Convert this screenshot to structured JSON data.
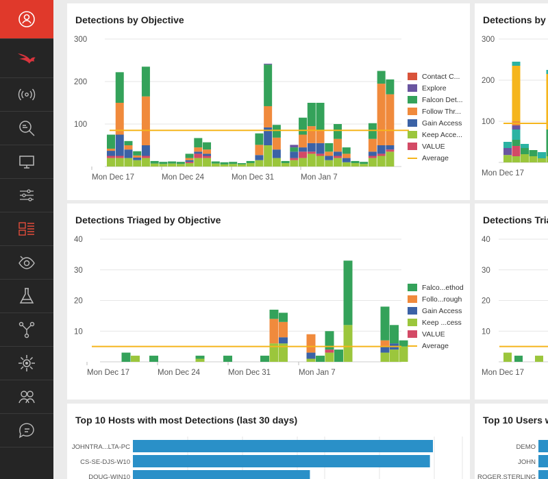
{
  "sidebar": {
    "items": [
      {
        "name": "user-icon",
        "active": true
      },
      {
        "name": "falcon-logo-icon"
      },
      {
        "name": "broadcast-icon"
      },
      {
        "name": "search-investigate-icon"
      },
      {
        "name": "monitor-icon"
      },
      {
        "name": "sliders-icon"
      },
      {
        "name": "dashboard-icon",
        "highlighted": true
      },
      {
        "name": "eye-icon"
      },
      {
        "name": "flask-icon"
      },
      {
        "name": "network-icon"
      },
      {
        "name": "gear-icon"
      },
      {
        "name": "users-icon"
      },
      {
        "name": "chat-help-icon"
      }
    ]
  },
  "colors": {
    "contact": "#d9533a",
    "explore": "#6a55a0",
    "falcon": "#34a25a",
    "follow": "#f08a3c",
    "gain": "#3b62a6",
    "keep": "#9bc63c",
    "value": "#d34a66",
    "average": "#f5b51c",
    "teal": "#2bb3a3",
    "hostbar": "#2a90c8"
  },
  "panels": {
    "det_by_objective": {
      "title": "Detections by Objective"
    },
    "det_by_t": {
      "title": "Detections by T"
    },
    "triaged_by_objective": {
      "title": "Detections Triaged by Objective"
    },
    "triaged_t": {
      "title": "Detections Tria"
    },
    "top_hosts": {
      "title": "Top 10 Hosts with most Detections (last 30 days)"
    },
    "top_users": {
      "title": "Top 10 Users w"
    }
  },
  "legend1": [
    "Contact C...",
    "Explore",
    "Falcon Det...",
    "Follow Thr...",
    "Gain Access",
    "Keep Acce...",
    "VALUE",
    "Average"
  ],
  "legend2": [
    "Falco...ethod",
    "Follo...rough",
    "Gain Access",
    "Keep ...cess",
    "VALUE",
    "Average"
  ],
  "chart_data": [
    {
      "type": "bar",
      "title": "Detections by Objective",
      "stacked": true,
      "x_ticks": [
        "Mon Dec 17",
        "Mon Dec 24",
        "Mon Dec 31",
        "Mon Jan 7"
      ],
      "y_ticks": [
        100,
        200,
        300
      ],
      "ylim": [
        0,
        300
      ],
      "average": 85,
      "series_order": [
        "keep",
        "value",
        "gain",
        "follow",
        "falcon",
        "explore",
        "contact"
      ],
      "bars": [
        {
          "keep": 20,
          "value": 5,
          "gain": 12,
          "follow": 5,
          "falcon": 33
        },
        {
          "keep": 20,
          "value": 5,
          "gain": 50,
          "follow": 75,
          "falcon": 72
        },
        {
          "keep": 20,
          "gain": 20,
          "follow": 10,
          "falcon": 10
        },
        {
          "keep": 15,
          "gain": 6,
          "follow": 5,
          "falcon": 10
        },
        {
          "keep": 20,
          "value": 5,
          "gain": 25,
          "follow": 115,
          "falcon": 70
        },
        {
          "keep": 7,
          "falcon": 6
        },
        {
          "keep": 6,
          "falcon": 5
        },
        {
          "keep": 7,
          "falcon": 5
        },
        {
          "keep": 6,
          "falcon": 5
        },
        {
          "keep": 8,
          "value": 3,
          "gain": 4,
          "follow": 5,
          "falcon": 10
        },
        {
          "keep": 20,
          "value": 10,
          "gain": 5,
          "follow": 10,
          "falcon": 22
        },
        {
          "keep": 20,
          "value": 5,
          "gain": 5,
          "follow": 10,
          "falcon": 17
        },
        {
          "keep": 7,
          "falcon": 5
        },
        {
          "keep": 5,
          "falcon": 5
        },
        {
          "keep": 6,
          "falcon": 5
        },
        {
          "keep": 5,
          "falcon": 3
        },
        {
          "keep": 8,
          "falcon": 5
        },
        {
          "keep": 15,
          "gain": 12,
          "follow": 24,
          "falcon": 27
        },
        {
          "keep": 50,
          "gain": 42,
          "follow": 50,
          "falcon": 98,
          "explore": 2
        },
        {
          "keep": 20,
          "gain": 20,
          "follow": 28,
          "falcon": 30
        },
        {
          "keep": 8,
          "falcon": 5
        },
        {
          "keep": 15,
          "value": 5,
          "gain": 15,
          "falcon": 10,
          "explore": 6
        },
        {
          "keep": 20,
          "value": 15,
          "gain": 10,
          "follow": 30,
          "falcon": 40
        },
        {
          "keep": 30,
          "value": 5,
          "gain": 20,
          "follow": 40,
          "falcon": 55
        },
        {
          "keep": 25,
          "value": 5,
          "gain": 25,
          "follow": 30,
          "falcon": 65
        },
        {
          "keep": 15,
          "gain": 10,
          "follow": 10,
          "falcon": 20
        },
        {
          "keep": 20,
          "value": 5,
          "gain": 10,
          "follow": 30,
          "falcon": 35
        },
        {
          "keep": 10,
          "gain": 10,
          "follow": 10,
          "falcon": 15
        },
        {
          "keep": 8,
          "falcon": 5
        },
        {
          "keep": 6,
          "falcon": 5
        },
        {
          "keep": 20,
          "value": 5,
          "gain": 10,
          "follow": 30,
          "falcon": 37
        },
        {
          "keep": 25,
          "value": 5,
          "gain": 20,
          "follow": 145,
          "falcon": 30
        },
        {
          "keep": 35,
          "value": 5,
          "gain": 10,
          "follow": 120,
          "falcon": 35
        }
      ]
    },
    {
      "type": "bar",
      "title": "Detections Triaged by Objective",
      "stacked": true,
      "x_ticks": [
        "Mon Dec 17",
        "Mon Dec 24",
        "Mon Dec 31",
        "Mon Jan 7"
      ],
      "y_ticks": [
        10,
        20,
        30,
        40
      ],
      "ylim": [
        0,
        40
      ],
      "average": 5,
      "series_order": [
        "keep",
        "value",
        "gain",
        "follow",
        "falcon"
      ],
      "bars": [
        {},
        {
          "falcon": 3
        },
        {
          "keep": 2
        },
        {},
        {
          "falcon": 2
        },
        {},
        {},
        {},
        {},
        {
          "keep": 1,
          "falcon": 1
        },
        {},
        {},
        {
          "falcon": 2
        },
        {},
        {},
        {},
        {
          "falcon": 2
        },
        {
          "keep": 6,
          "follow": 8,
          "falcon": 3
        },
        {
          "keep": 6,
          "gain": 2,
          "follow": 5,
          "falcon": 3
        },
        {},
        {},
        {
          "keep": 1,
          "gain": 2,
          "follow": 6
        },
        {
          "falcon": 2
        },
        {
          "keep": 3,
          "value": 1,
          "falcon": 6
        },
        {
          "falcon": 4
        },
        {
          "keep": 12,
          "falcon": 21
        },
        {},
        {},
        {},
        {
          "keep": 3,
          "gain": 2,
          "follow": 2,
          "falcon": 11
        },
        {
          "keep": 4,
          "gain": 2,
          "falcon": 6
        },
        {
          "keep": 5,
          "falcon": 2
        }
      ]
    },
    {
      "type": "bar",
      "title": "Top 10 Hosts with most Detections (last 30 days)",
      "orientation": "horizontal",
      "categories": [
        "JOHNTRA...LTA-PC",
        "CS-SE-DJS-W10",
        "DOUG-WIN10"
      ],
      "values": [
        100,
        99,
        59
      ]
    },
    {
      "type": "bar",
      "title": "Top 10 Users w",
      "orientation": "horizontal",
      "categories": [
        "DEMO",
        "JOHN",
        "ROGER.STERLING"
      ]
    }
  ]
}
